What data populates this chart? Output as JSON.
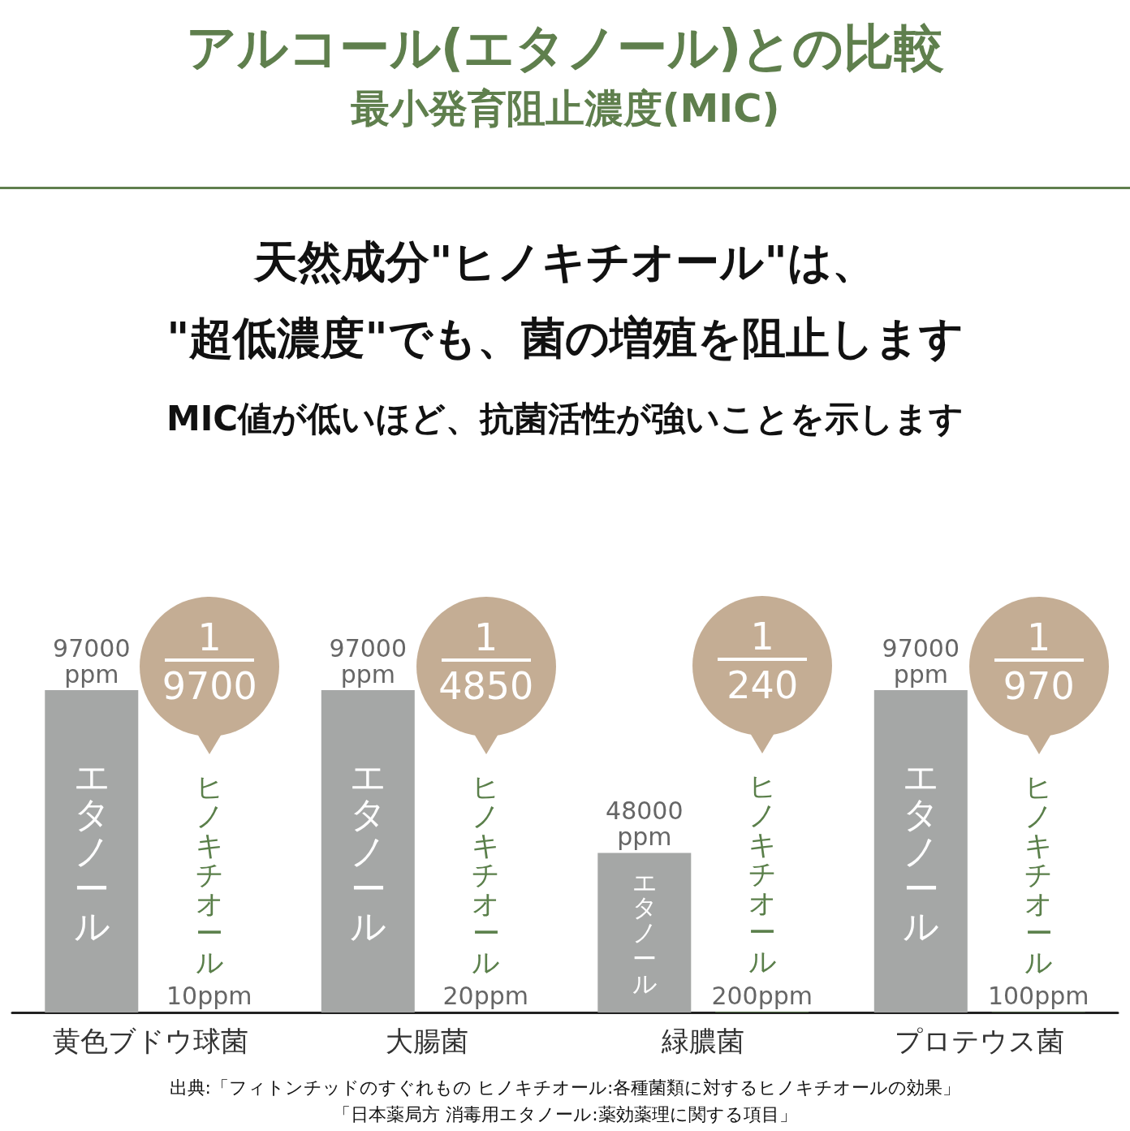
{
  "chart_data": {
    "type": "bar",
    "title": "アルコール(エタノール)との比較",
    "subtitle": "最小発育阻止濃度(MIC)",
    "categories": [
      "黄色ブドウ球菌",
      "大腸菌",
      "緑膿菌",
      "プロテウス菌"
    ],
    "series": [
      {
        "name": "エタノール",
        "color": "#a5a7a6",
        "values": [
          97000,
          97000,
          48000,
          97000
        ],
        "value_labels": [
          "97000\nppm",
          "97000\nppm",
          "48000\nppm",
          "97000\nppm"
        ]
      },
      {
        "name": "ヒノキチオール",
        "color": "#5a7f4a",
        "values": [
          10,
          20,
          200,
          100
        ],
        "value_labels": [
          "10ppm",
          "20ppm",
          "200ppm",
          "100ppm"
        ]
      }
    ],
    "annotations": [
      "天然成分\"ヒノキチオール\"は、\n\"超低濃度\"でも、菌の増殖を阻止します",
      "MIC値が低いほど、抗菌活性が強いことを示します",
      "1\n9700",
      "1\n4850",
      "1\n240",
      "1\n970",
      "出典:「フィトンチッドのすぐれもの ヒノキチオール:各種菌類に対するヒノキチオールの効果」",
      "「日本薬局方 消毒用エタノール:薬効薬理に関する項目」"
    ]
  }
}
